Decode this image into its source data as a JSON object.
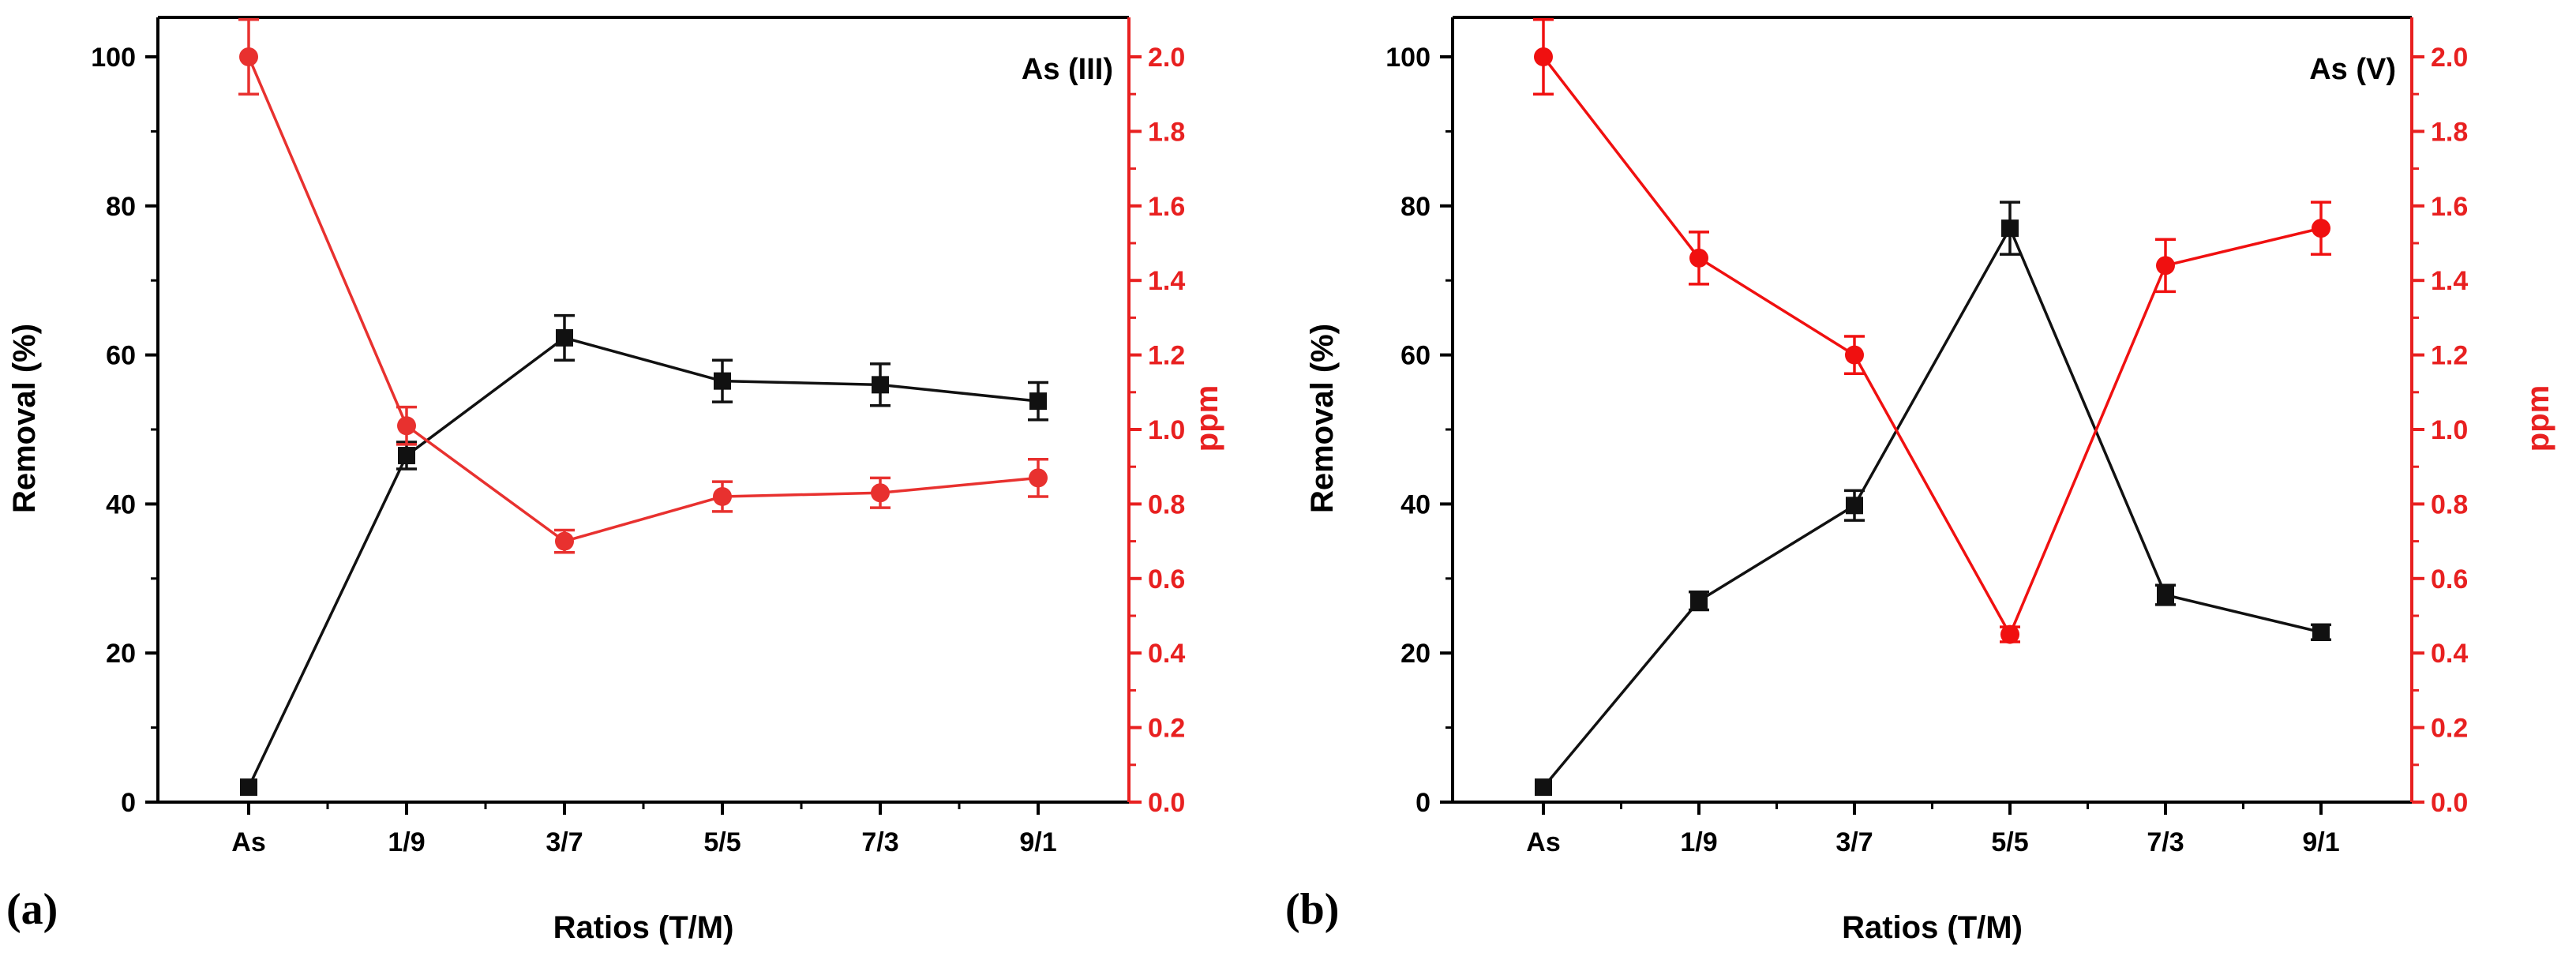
{
  "colors": {
    "removal": "#111111",
    "ppm": "#e8312f",
    "ppm_b": "#f01010",
    "axis": "#000000",
    "right_axis": "#e82020"
  },
  "chart_data": [
    {
      "type": "line",
      "panel_label": "(a)",
      "annotation": "As (III)",
      "xlabel": "Ratios (T/M)",
      "ylabel": "Removal (%)",
      "y2label": "ppm",
      "categories": [
        "As",
        "1/9",
        "3/7",
        "5/5",
        "7/3",
        "9/1"
      ],
      "ylim": [
        0,
        100
      ],
      "y2lim": [
        0,
        2.0
      ],
      "yticks": [
        "0",
        "20",
        "40",
        "60",
        "80",
        "100"
      ],
      "y2ticks": [
        "0.0",
        "0.2",
        "0.4",
        "0.6",
        "0.8",
        "1.0",
        "1.2",
        "1.4",
        "1.6",
        "1.8",
        "2.0"
      ],
      "series": [
        {
          "name": "Removal (%)",
          "axis": "left",
          "marker": "square",
          "values": [
            2,
            46.5,
            62.3,
            56.5,
            56,
            53.8
          ],
          "errors": [
            0,
            1.8,
            3,
            2.8,
            2.8,
            2.5
          ]
        },
        {
          "name": "ppm",
          "axis": "right",
          "marker": "circle",
          "values": [
            2.0,
            1.01,
            0.7,
            0.82,
            0.83,
            0.87
          ],
          "errors": [
            0.1,
            0.05,
            0.03,
            0.04,
            0.04,
            0.05
          ]
        }
      ]
    },
    {
      "type": "line",
      "panel_label": "(b)",
      "annotation": "As (V)",
      "xlabel": "Ratios (T/M)",
      "ylabel": "Removal (%)",
      "y2label": "ppm",
      "categories": [
        "As",
        "1/9",
        "3/7",
        "5/5",
        "7/3",
        "9/1"
      ],
      "ylim": [
        0,
        100
      ],
      "y2lim": [
        0,
        2.0
      ],
      "yticks": [
        "0",
        "20",
        "40",
        "60",
        "80",
        "100"
      ],
      "y2ticks": [
        "0.0",
        "0.2",
        "0.4",
        "0.6",
        "0.8",
        "1.0",
        "1.2",
        "1.4",
        "1.6",
        "1.8",
        "2.0"
      ],
      "series": [
        {
          "name": "Removal (%)",
          "axis": "left",
          "marker": "square",
          "values": [
            2,
            27,
            39.8,
            77,
            27.8,
            22.8
          ],
          "errors": [
            0,
            1.2,
            2,
            3.5,
            1.3,
            1
          ]
        },
        {
          "name": "ppm",
          "axis": "right",
          "marker": "circle",
          "values": [
            2.0,
            1.46,
            1.2,
            0.45,
            1.44,
            1.54
          ],
          "errors": [
            0.1,
            0.07,
            0.05,
            0.02,
            0.07,
            0.07
          ]
        }
      ]
    }
  ]
}
